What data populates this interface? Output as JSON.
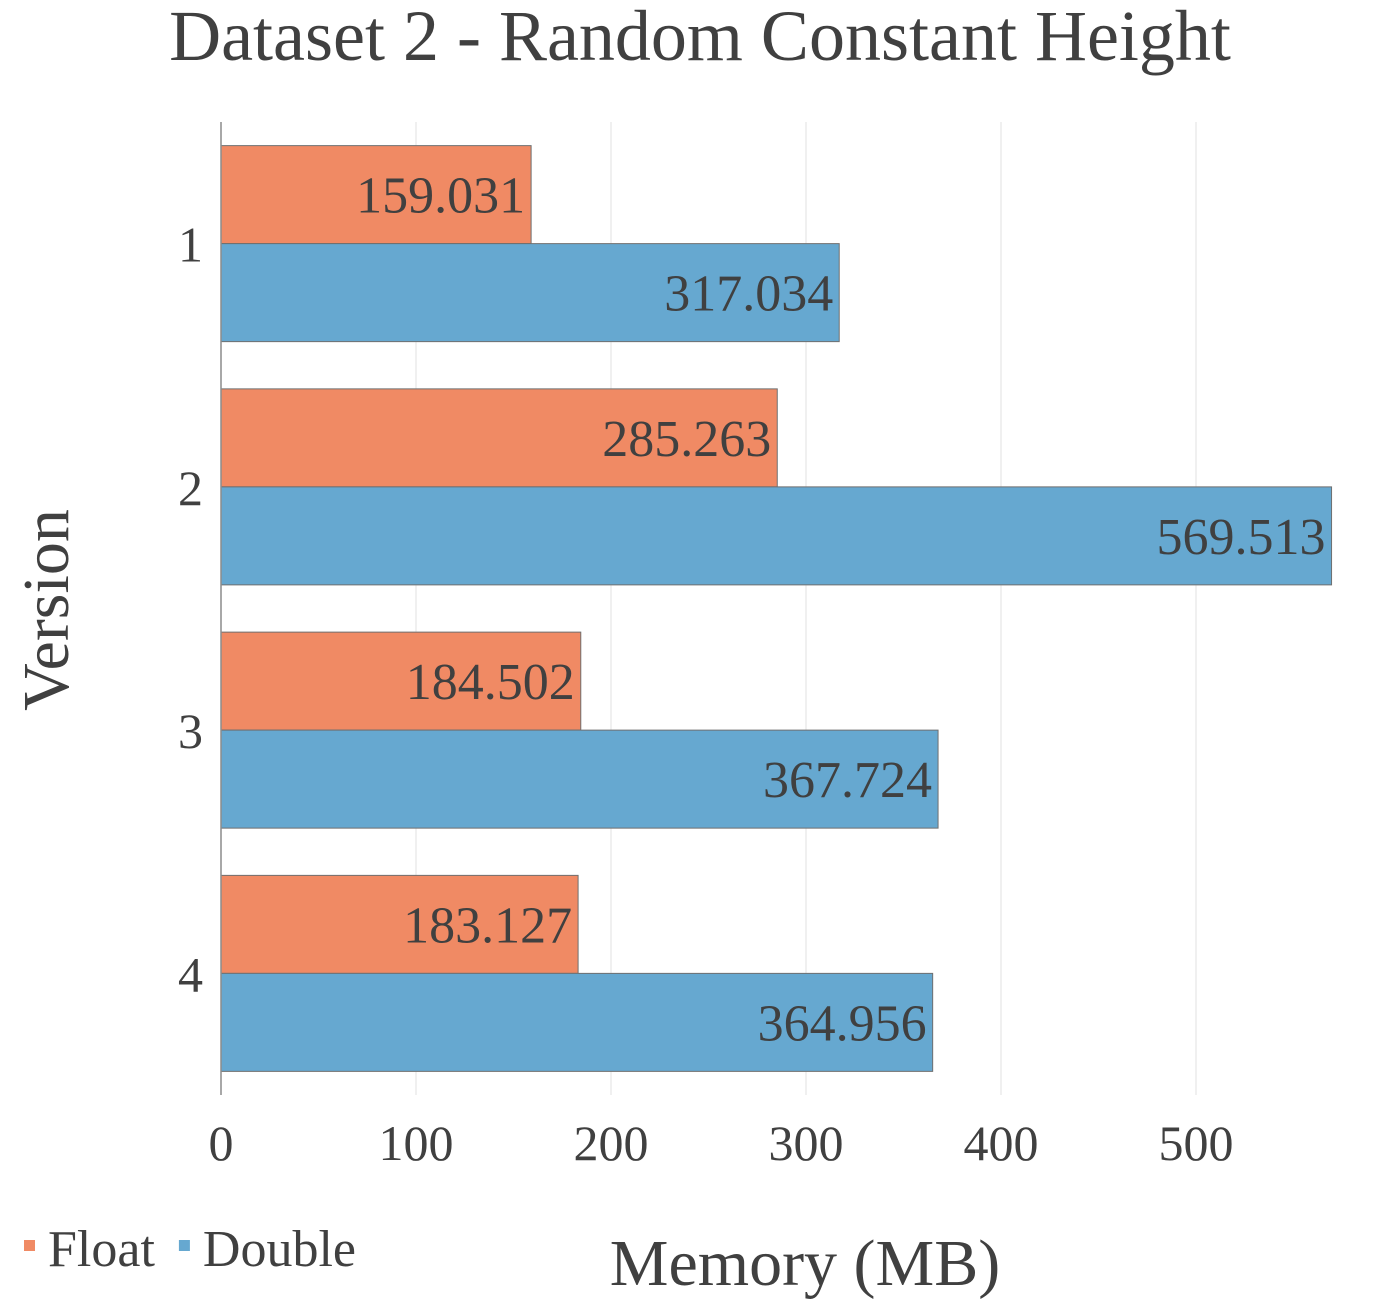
{
  "chart_data": {
    "type": "bar",
    "orientation": "horizontal",
    "title": "Dataset 2 - Random Constant Height",
    "xlabel": "Memory (MB)",
    "ylabel": "Version",
    "categories": [
      "1",
      "2",
      "3",
      "4"
    ],
    "series": [
      {
        "name": "Float",
        "color": "#F08A64",
        "values": [
          159.031,
          285.263,
          184.502,
          183.127
        ]
      },
      {
        "name": "Double",
        "color": "#66A8D0",
        "values": [
          317.034,
          569.513,
          367.724,
          364.956
        ]
      }
    ],
    "xlim": [
      0,
      600
    ],
    "xticks": [
      0,
      100,
      200,
      300,
      400,
      500
    ],
    "grid": true,
    "legend_position": "bottom-left"
  }
}
